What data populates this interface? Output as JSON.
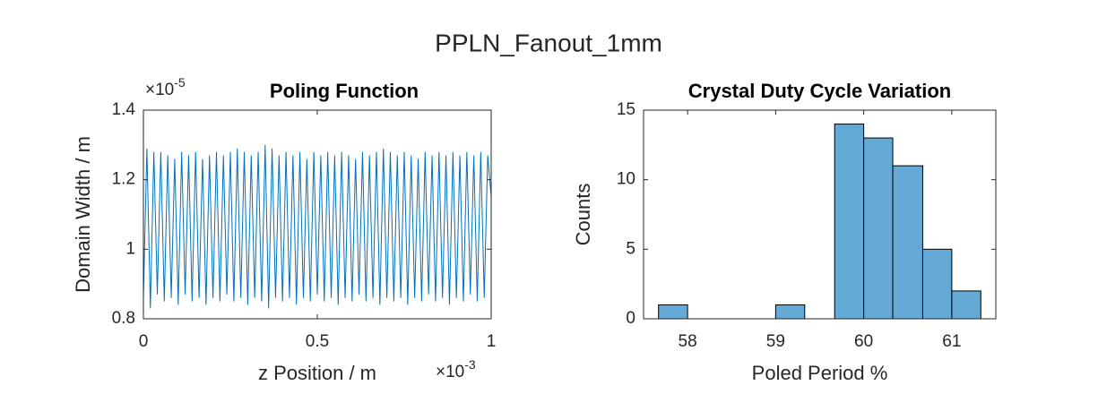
{
  "title": "PPLN_Fanout_1mm",
  "chart_data": [
    {
      "type": "line",
      "title": "Poling Function",
      "x_label": "z Position / m",
      "y_label": "Domain Width / m",
      "x_multiplier": {
        "base": "×10",
        "exponent": "-3"
      },
      "y_multiplier": {
        "base": "×10",
        "exponent": "-5"
      },
      "xlim": [
        0,
        1
      ],
      "xticks": [
        0,
        0.5,
        1
      ],
      "ylim": [
        0.8,
        1.4
      ],
      "yticks": [
        0.8,
        1,
        1.2,
        1.4
      ],
      "color": "#0072bd",
      "x": [
        0,
        0.01,
        0.02,
        0.03,
        0.04,
        0.05,
        0.06,
        0.07,
        0.08,
        0.09,
        0.1,
        0.11,
        0.12,
        0.13,
        0.14,
        0.15,
        0.16,
        0.17,
        0.18,
        0.19,
        0.2,
        0.21,
        0.22,
        0.23,
        0.24,
        0.25,
        0.26,
        0.27,
        0.28,
        0.29,
        0.3,
        0.31,
        0.32,
        0.33,
        0.34,
        0.35,
        0.36,
        0.37,
        0.38,
        0.39,
        0.4,
        0.41,
        0.42,
        0.43,
        0.44,
        0.45,
        0.46,
        0.47,
        0.48,
        0.49,
        0.5,
        0.51,
        0.52,
        0.53,
        0.54,
        0.55,
        0.56,
        0.57,
        0.58,
        0.59,
        0.6,
        0.61,
        0.62,
        0.63,
        0.64,
        0.65,
        0.66,
        0.67,
        0.68,
        0.69,
        0.7,
        0.71,
        0.72,
        0.73,
        0.74,
        0.75,
        0.76,
        0.77,
        0.78,
        0.79,
        0.8,
        0.81,
        0.82,
        0.83,
        0.84,
        0.85,
        0.86,
        0.87,
        0.88,
        0.89,
        0.9,
        0.91,
        0.92,
        0.93,
        0.94,
        0.95,
        0.96,
        0.97,
        0.98,
        0.99,
        1
      ],
      "values": [
        0.86,
        1.29,
        0.83,
        1.28,
        0.87,
        1.28,
        0.85,
        1.27,
        0.86,
        1.26,
        0.84,
        1.28,
        0.87,
        1.27,
        0.85,
        1.28,
        0.86,
        1.26,
        0.84,
        1.27,
        0.86,
        1.28,
        0.85,
        1.27,
        0.87,
        1.28,
        0.85,
        1.29,
        0.86,
        1.28,
        0.84,
        1.27,
        0.86,
        1.28,
        0.85,
        1.3,
        0.83,
        1.29,
        0.86,
        1.27,
        0.85,
        1.28,
        0.86,
        1.27,
        0.84,
        1.28,
        0.86,
        1.26,
        0.85,
        1.28,
        0.87,
        1.27,
        0.85,
        1.28,
        0.86,
        1.27,
        0.84,
        1.28,
        0.86,
        1.27,
        0.85,
        1.26,
        0.87,
        1.28,
        0.85,
        1.27,
        0.86,
        1.28,
        0.84,
        1.29,
        0.86,
        1.28,
        0.85,
        1.27,
        0.86,
        1.28,
        0.84,
        1.27,
        0.86,
        1.26,
        0.85,
        1.28,
        0.87,
        1.27,
        0.85,
        1.28,
        0.86,
        1.27,
        0.84,
        1.28,
        0.86,
        1.27,
        0.85,
        1.28,
        0.87,
        1.27,
        0.85,
        1.28,
        0.86,
        1.27,
        1.15
      ]
    },
    {
      "type": "histogram",
      "title": "Crystal Duty Cycle Variation",
      "x_label": "Poled Period %",
      "y_label": "Counts",
      "xlim": [
        57.5,
        61.5
      ],
      "xticks": [
        58,
        59,
        60,
        61
      ],
      "ylim": [
        0,
        15
      ],
      "yticks": [
        0,
        5,
        10,
        15
      ],
      "color": "#65a9d7",
      "bins": [
        57.67,
        58,
        58.33,
        58.67,
        59,
        59.33,
        59.67,
        60,
        60.33,
        60.67,
        61,
        61.33
      ],
      "values": [
        1,
        0,
        0,
        0,
        1,
        0,
        14,
        13,
        11,
        5,
        2
      ]
    }
  ]
}
